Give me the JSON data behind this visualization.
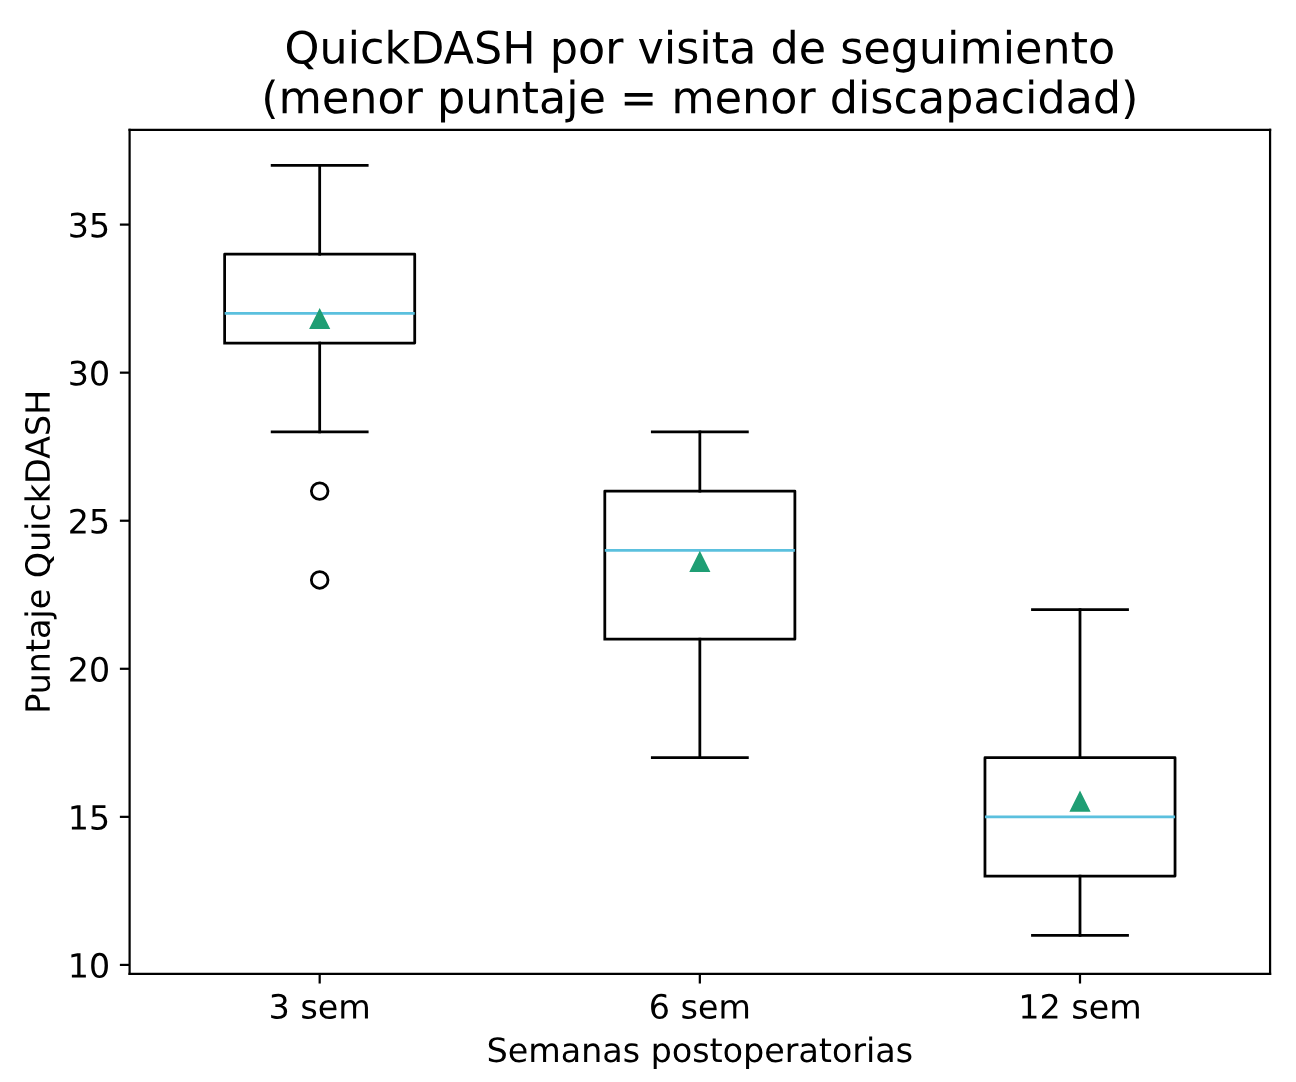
{
  "chart_data": {
    "type": "box",
    "title": "QuickDASH por visita de seguimiento\n(menor puntaje = menor discapacidad)",
    "xlabel": "Semanas postoperatorias",
    "ylabel": "Puntaje QuickDASH",
    "categories": [
      "3 sem",
      "6 sem",
      "12 sem"
    ],
    "boxes": [
      {
        "low": 28,
        "q1": 31,
        "median": 32,
        "q3": 34,
        "high": 37,
        "mean": 31.8,
        "outliers": [
          26,
          23
        ]
      },
      {
        "low": 17,
        "q1": 21,
        "median": 24,
        "q3": 26,
        "high": 28,
        "mean": 23.6
      },
      {
        "low": 11,
        "q1": 13,
        "median": 15,
        "q3": 17,
        "high": 22,
        "mean": 15.5
      }
    ],
    "marker": "triangle",
    "ylim": [
      9.7,
      38.2
    ],
    "yticks": [
      10,
      15,
      20,
      25,
      30,
      35
    ],
    "grid": false
  }
}
